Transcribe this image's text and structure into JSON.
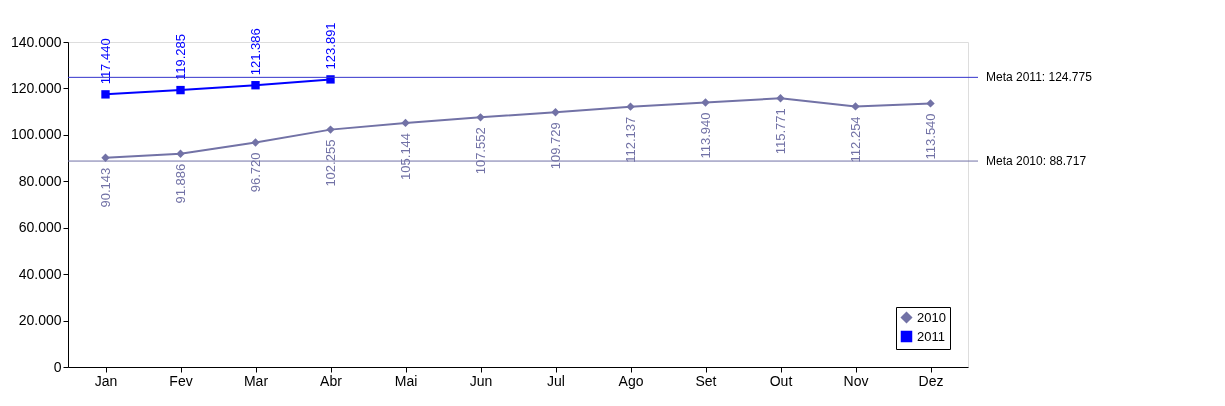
{
  "chart_data": {
    "type": "line",
    "categories": [
      "Jan",
      "Fev",
      "Mar",
      "Abr",
      "Mai",
      "Jun",
      "Jul",
      "Ago",
      "Set",
      "Out",
      "Nov",
      "Dez"
    ],
    "series": [
      {
        "name": "2010",
        "color": "#7272a6",
        "marker": "diamond",
        "values": [
          90143,
          91886,
          96720,
          102255,
          105144,
          107552,
          109729,
          112137,
          113940,
          115771,
          112254,
          113540
        ],
        "value_labels": [
          "90.143",
          "91.886",
          "96.720",
          "102.255",
          "105.144",
          "107.552",
          "109.729",
          "112.137",
          "113.940",
          "115.771",
          "112.254",
          "113.540"
        ]
      },
      {
        "name": "2011",
        "color": "#0000ff",
        "marker": "square",
        "values": [
          117440,
          119285,
          121386,
          123891,
          null,
          null,
          null,
          null,
          null,
          null,
          null,
          null
        ],
        "value_labels": [
          "117.440",
          "119.285",
          "121.386",
          "123.891",
          null,
          null,
          null,
          null,
          null,
          null,
          null,
          null
        ]
      }
    ],
    "ylim": [
      0,
      140000
    ],
    "yticks": [
      {
        "value": 0,
        "label": "0"
      },
      {
        "value": 20000,
        "label": "20.000"
      },
      {
        "value": 40000,
        "label": "40.000"
      },
      {
        "value": 60000,
        "label": "60.000"
      },
      {
        "value": 80000,
        "label": "80.000"
      },
      {
        "value": 100000,
        "label": "100.000"
      },
      {
        "value": 120000,
        "label": "120.000"
      },
      {
        "value": 140000,
        "label": "140.000"
      }
    ],
    "ref_lines": [
      {
        "axis": "y",
        "value": 124775,
        "label": "Meta 2011: 124.775",
        "color": "#3333cc"
      },
      {
        "axis": "y",
        "value": 88717,
        "label": "Meta 2010: 88.717",
        "color": "#7272a6"
      }
    ],
    "grid": false,
    "legend": "bottom right"
  }
}
